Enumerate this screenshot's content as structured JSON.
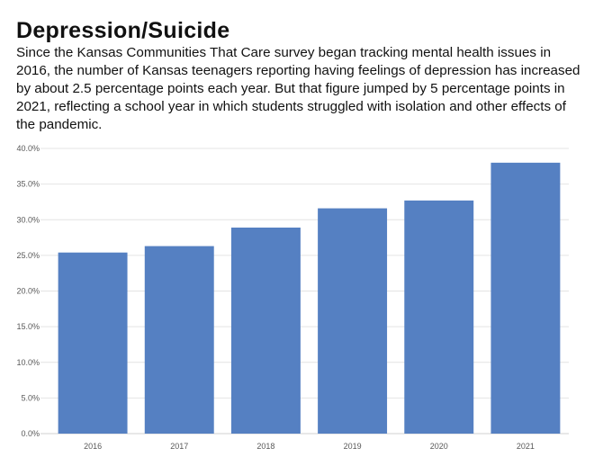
{
  "header": {
    "title": "Depression/Suicide",
    "description": "Since the Kansas Communities That Care survey began tracking mental health issues in 2016, the number of Kansas teenagers reporting having feelings of depression has increased by about 2.5 percentage points each year. But that figure jumped by 5 percentage points in 2021, reflecting a school year in which students struggled with isolation and other effects of the pandemic."
  },
  "chart_data": {
    "type": "bar",
    "categories": [
      "2016",
      "2017",
      "2018",
      "2019",
      "2020",
      "2021"
    ],
    "values": [
      25.4,
      26.3,
      28.9,
      31.6,
      32.7,
      38.0
    ],
    "unit": "%",
    "ylim": [
      0,
      40
    ],
    "yticks": [
      "0.0%",
      "5.0%",
      "10.0%",
      "15.0%",
      "20.0%",
      "25.0%",
      "30.0%",
      "35.0%",
      "40.0%"
    ],
    "grid": true,
    "bar_color": "#5580C2",
    "title": "",
    "xlabel": "",
    "ylabel": ""
  }
}
